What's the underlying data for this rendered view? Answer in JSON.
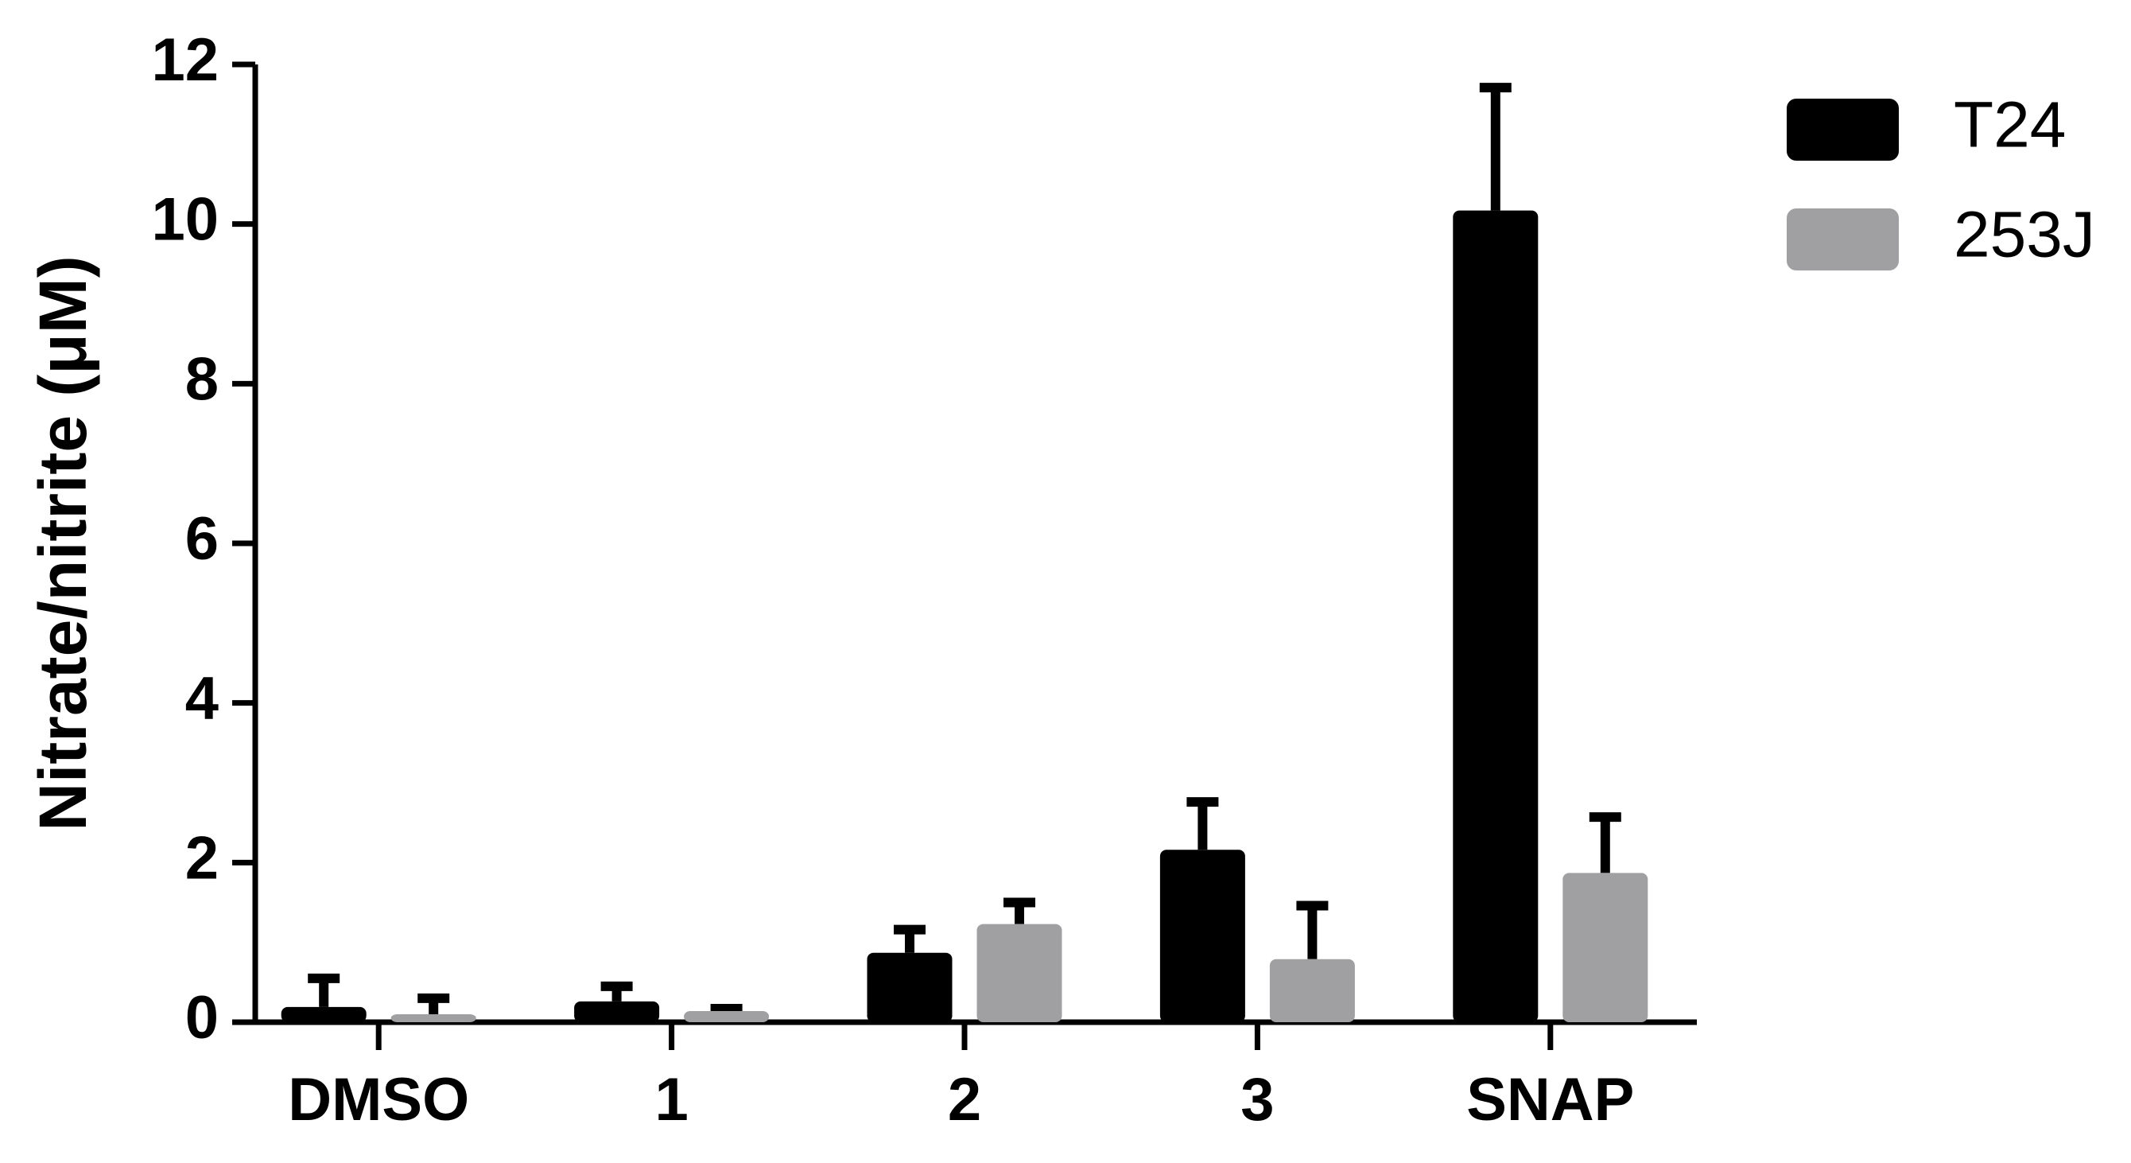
{
  "chart_data": {
    "type": "bar",
    "y_label": "Nitrate/nitrite (μM)",
    "categories": [
      "DMSO",
      "1",
      "2",
      "3",
      "SNAP"
    ],
    "series": [
      {
        "name": "T24",
        "color": "#000000",
        "values": [
          0.19,
          0.26,
          0.87,
          2.16,
          10.17
        ],
        "errors": [
          0.36,
          0.19,
          0.29,
          0.6,
          1.54
        ]
      },
      {
        "name": "253J",
        "color": "#a0a0a3",
        "values": [
          0.1,
          0.14,
          1.23,
          0.79,
          1.87
        ],
        "errors": [
          0.2,
          0.03,
          0.27,
          0.67,
          0.7
        ]
      }
    ],
    "ylim": [
      0,
      12
    ],
    "yticks": [
      0,
      2,
      4,
      6,
      8,
      10,
      12
    ],
    "legend": "right"
  }
}
